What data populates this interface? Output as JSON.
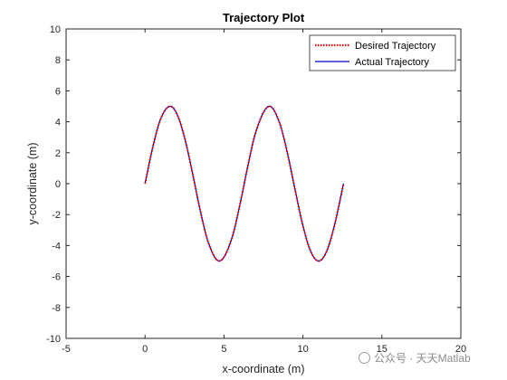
{
  "chart_data": {
    "type": "line",
    "title": "Trajectory Plot",
    "xlabel": "x-coordinate (m)",
    "ylabel": "y-coordinate (m)",
    "xlim": [
      -5,
      20
    ],
    "ylim": [
      -10,
      10
    ],
    "xticks": [
      -5,
      0,
      5,
      10,
      15,
      20
    ],
    "yticks": [
      -10,
      -8,
      -6,
      -4,
      -2,
      0,
      2,
      4,
      6,
      8,
      10
    ],
    "grid": false,
    "legend_position": "top-right",
    "series": [
      {
        "name": "Desired Trajectory",
        "color": "#ff0000",
        "style": "dotted",
        "x": [
          0,
          0.5,
          1,
          1.57,
          2,
          2.5,
          3,
          3.5,
          4,
          4.71,
          5.5,
          6,
          6.5,
          7,
          7.85,
          8.5,
          9,
          9.5,
          10,
          10.5,
          11,
          11.5,
          12,
          12.57
        ],
        "y": [
          0,
          2.4,
          4.21,
          5,
          4.55,
          2.99,
          0.71,
          -1.75,
          -3.78,
          -5,
          -3.53,
          -1.4,
          1.08,
          3.28,
          5,
          3.99,
          2.06,
          -0.38,
          -2.72,
          -4.39,
          -5,
          -4.38,
          -2.68,
          0
        ]
      },
      {
        "name": "Actual Trajectory",
        "color": "#0000cc",
        "style": "solid",
        "x": [
          0,
          0.5,
          1,
          1.57,
          2,
          2.5,
          3,
          3.5,
          4,
          4.71,
          5.5,
          6,
          6.5,
          7,
          7.85,
          8.5,
          9,
          9.5,
          10,
          10.5,
          11,
          11.5,
          12,
          12.57
        ],
        "y": [
          0,
          2.4,
          4.21,
          5,
          4.55,
          2.99,
          0.71,
          -1.75,
          -3.78,
          -5,
          -3.53,
          -1.4,
          1.08,
          3.28,
          5,
          3.99,
          2.06,
          -0.38,
          -2.72,
          -4.39,
          -5,
          -4.38,
          -2.68,
          0
        ]
      }
    ]
  },
  "watermark": {
    "text": "公众号 · 天天Matlab",
    "icon": "wechat-icon"
  }
}
